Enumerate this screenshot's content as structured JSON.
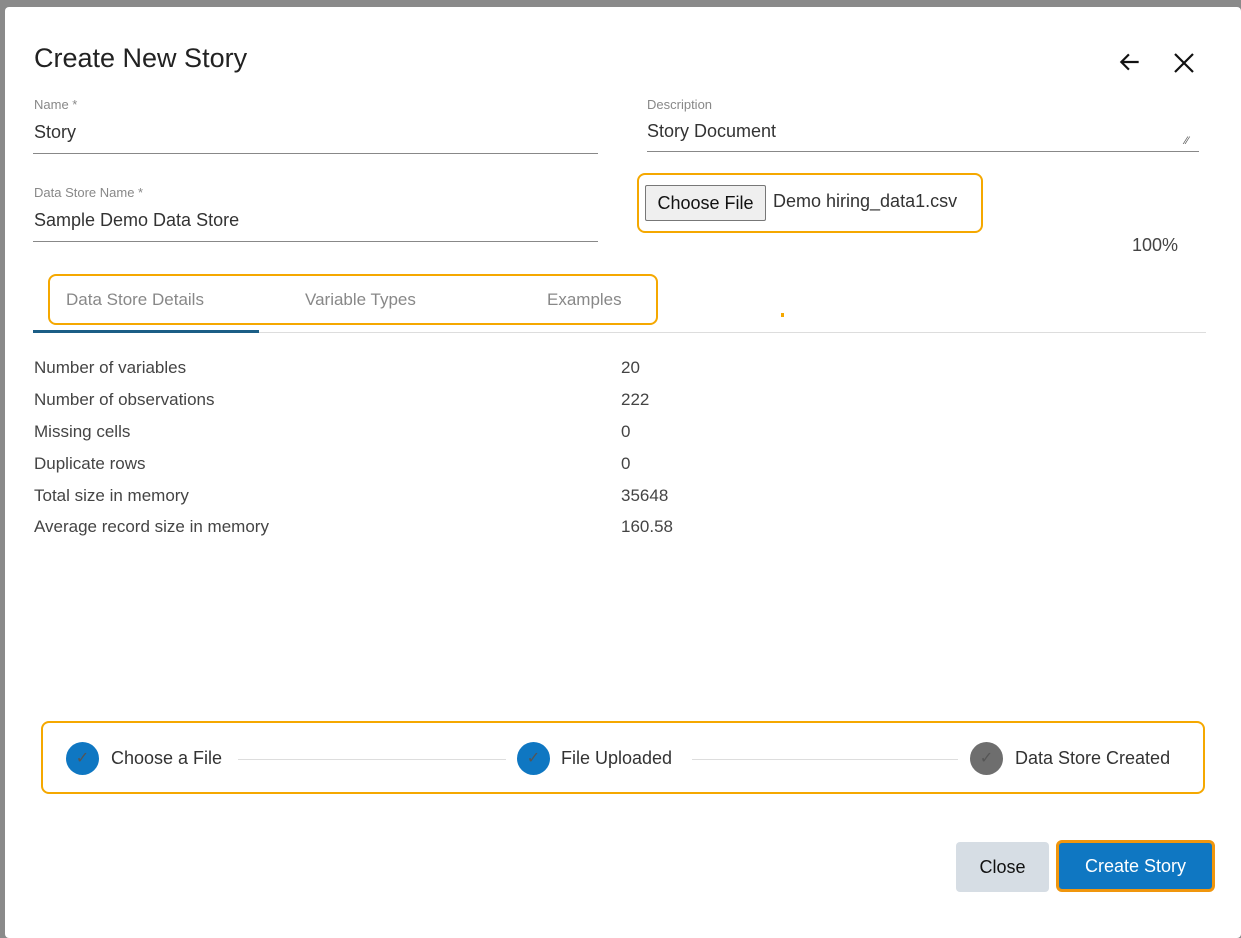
{
  "dialog": {
    "title": "Create New Story"
  },
  "form": {
    "name": {
      "label": "Name *",
      "value": "Story"
    },
    "description": {
      "label": "Description",
      "value": "Story Document"
    },
    "data_store_name": {
      "label": "Data Store Name *",
      "value": "Sample Demo Data Store"
    },
    "file": {
      "button_label": "Choose File",
      "file_name": "Demo hiring_data1.csv",
      "progress": "100%"
    }
  },
  "tabs": [
    {
      "label": "Data Store Details",
      "active": true
    },
    {
      "label": "Variable Types"
    },
    {
      "label": "Examples"
    }
  ],
  "details": [
    {
      "label": "Number of variables",
      "value": "20"
    },
    {
      "label": "Number of observations",
      "value": "222"
    },
    {
      "label": "Missing cells",
      "value": "0"
    },
    {
      "label": "Duplicate rows",
      "value": "0"
    },
    {
      "label": "Total size in memory",
      "value": "35648"
    },
    {
      "label": "Average record size in memory",
      "value": "160.58"
    }
  ],
  "steps": [
    {
      "label": "Choose a File",
      "status": "done",
      "color": "#0f77c2"
    },
    {
      "label": "File Uploaded",
      "status": "done",
      "color": "#0f77c2"
    },
    {
      "label": "Data Store Created",
      "status": "pending",
      "color": "#6e6e6e"
    }
  ],
  "buttons": {
    "close": "Close",
    "create": "Create Story"
  },
  "colors": {
    "accent": "#0f77c2",
    "highlight": "#f5a800"
  }
}
